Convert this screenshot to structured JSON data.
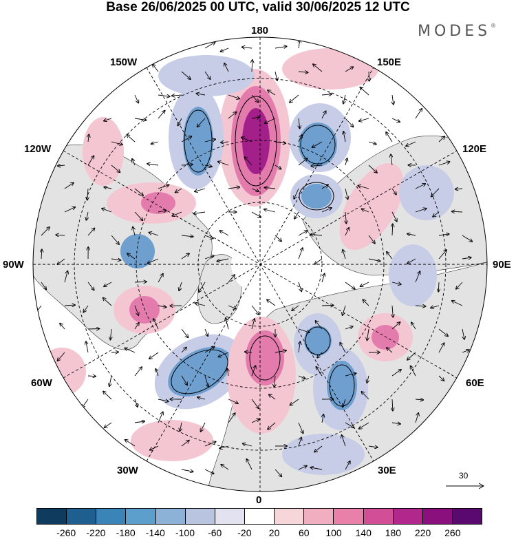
{
  "title": "Base 26/06/2025 00 UTC, valid 30/06/2025 12 UTC",
  "brand": "MODES",
  "longitude_labels": {
    "lon_180": "180",
    "lon_150w": "150W",
    "lon_150e": "150E",
    "lon_120w": "120W",
    "lon_120e": "120E",
    "lon_90w": "90W",
    "lon_90e": "90E",
    "lon_60w": "60W",
    "lon_60e": "60E",
    "lon_30w": "30W",
    "lon_30e": "30E",
    "lon_0": "0"
  },
  "reference_vector": {
    "label": "30"
  },
  "colorbar": {
    "colors": [
      "#0f3b5e",
      "#1f5f8f",
      "#3a84b8",
      "#5d9fcc",
      "#8db2d8",
      "#b8c4e0",
      "#e2e2f0",
      "#ffffff",
      "#f7d6da",
      "#f0aec0",
      "#e880aa",
      "#d24f98",
      "#b1278c",
      "#8a117d",
      "#5a0a6e"
    ],
    "tick_labels": [
      "-260",
      "-220",
      "-180",
      "-140",
      "-100",
      "-60",
      "-20",
      "20",
      "60",
      "100",
      "140",
      "180",
      "220",
      "260"
    ]
  },
  "map": {
    "projection": "north polar stereographic",
    "colors": {
      "strong_positive": "#a3208a",
      "positive": "#e37cac",
      "weak_positive": "#f3c6d2",
      "strong_negative": "#2d74ad",
      "negative": "#6e9fcf",
      "weak_negative": "#c7cde6",
      "land": "#e3e3e3"
    }
  }
}
